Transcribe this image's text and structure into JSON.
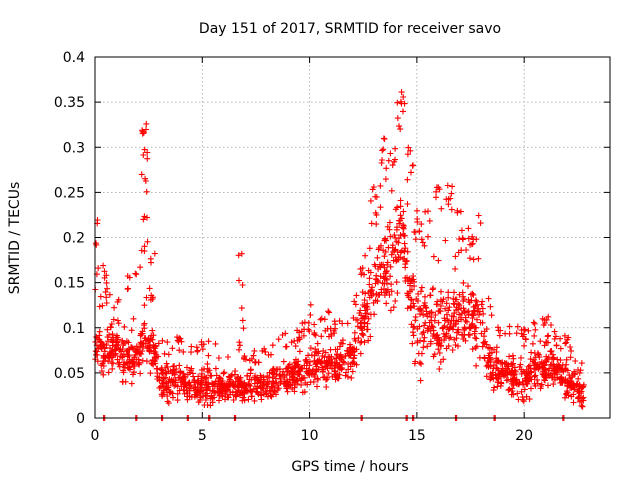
{
  "chart_data": {
    "type": "scatter",
    "title": "Day 151 of 2017, SRMTID for receiver savo",
    "xlabel": "GPS time / hours",
    "ylabel": "SRMTID / TECUs",
    "xlim": [
      0,
      24
    ],
    "ylim": [
      0,
      0.4
    ],
    "x_ticks": [
      0,
      5,
      10,
      15,
      20
    ],
    "y_ticks": [
      0,
      0.05,
      0.1,
      0.15,
      0.2,
      0.25,
      0.3,
      0.35,
      0.4
    ],
    "x_tick_labels": [
      "0",
      "5",
      "10",
      "15",
      "20"
    ],
    "y_tick_labels": [
      "0",
      "0.05",
      "0.1",
      "0.15",
      "0.2",
      "0.25",
      "0.3",
      "0.35",
      "0.4"
    ],
    "grid": true,
    "marker": "+",
    "series": [
      {
        "name": "SRMTID",
        "color": "#ff0000",
        "envelope_note": "approximate distribution of the ~2000 plotted samples: [hour, typical_low, typical_high, notable_peaks]",
        "envelope": [
          [
            0.0,
            0.05,
            0.12,
            [
              0.23,
              0.21,
              0.17
            ]
          ],
          [
            0.5,
            0.03,
            0.12,
            [
              0.17,
              0.15
            ]
          ],
          [
            1.0,
            0.04,
            0.12,
            []
          ],
          [
            1.5,
            0.03,
            0.11,
            [
              0.16
            ]
          ],
          [
            2.0,
            0.03,
            0.1,
            [
              0.17
            ]
          ],
          [
            2.3,
            0.06,
            0.12,
            [
              0.335,
              0.32,
              0.3,
              0.27,
              0.23,
              0.2
            ]
          ],
          [
            2.7,
            0.04,
            0.12,
            [
              0.19,
              0.15
            ]
          ],
          [
            3.0,
            0.01,
            0.07,
            []
          ],
          [
            4.0,
            0.01,
            0.07,
            [
              0.09
            ]
          ],
          [
            5.0,
            0.005,
            0.07,
            [
              0.09
            ]
          ],
          [
            6.0,
            0.01,
            0.06,
            []
          ],
          [
            6.8,
            0.01,
            0.06,
            [
              0.2,
              0.165,
              0.125,
              0.1
            ]
          ],
          [
            7.5,
            0.01,
            0.06,
            []
          ],
          [
            8.5,
            0.01,
            0.07,
            []
          ],
          [
            9.5,
            0.02,
            0.08,
            [
              0.1
            ]
          ],
          [
            10.0,
            0.02,
            0.09,
            [
              0.13
            ]
          ],
          [
            11.0,
            0.03,
            0.09,
            [
              0.13
            ]
          ],
          [
            12.0,
            0.03,
            0.1,
            []
          ],
          [
            12.5,
            0.07,
            0.15,
            [
              0.18
            ]
          ],
          [
            13.0,
            0.09,
            0.2,
            [
              0.26
            ]
          ],
          [
            13.5,
            0.1,
            0.23,
            [
              0.31,
              0.29
            ]
          ],
          [
            14.0,
            0.09,
            0.26,
            [
              0.35,
              0.3
            ]
          ],
          [
            14.3,
            0.15,
            0.27,
            [
              0.37,
              0.365,
              0.34
            ]
          ],
          [
            14.7,
            0.07,
            0.2,
            [
              0.3,
              0.28
            ]
          ],
          [
            15.0,
            0.03,
            0.17,
            [
              0.23,
              0.21
            ]
          ],
          [
            15.5,
            0.05,
            0.17,
            [
              0.23
            ]
          ],
          [
            16.0,
            0.04,
            0.16,
            [
              0.26,
              0.25
            ]
          ],
          [
            16.5,
            0.04,
            0.17,
            [
              0.26,
              0.25
            ]
          ],
          [
            17.0,
            0.06,
            0.17,
            [
              0.23,
              0.2
            ]
          ],
          [
            17.5,
            0.05,
            0.17,
            [
              0.2
            ]
          ],
          [
            18.0,
            0.05,
            0.16,
            [
              0.23
            ]
          ],
          [
            18.5,
            0.02,
            0.09,
            []
          ],
          [
            19.0,
            0.02,
            0.08,
            []
          ],
          [
            20.0,
            0.01,
            0.08,
            [
              0.1
            ]
          ],
          [
            20.5,
            0.02,
            0.08,
            [
              0.11
            ]
          ],
          [
            21.0,
            0.02,
            0.09,
            [
              0.12,
              0.1
            ]
          ],
          [
            21.5,
            0.03,
            0.08,
            [
              0.1
            ]
          ],
          [
            22.0,
            0.01,
            0.07,
            [
              0.09
            ]
          ],
          [
            22.5,
            0.01,
            0.05,
            [
              0.07
            ]
          ],
          [
            22.8,
            0.005,
            0.045,
            []
          ]
        ],
        "zero_samples": [
          0.4,
          1.9,
          3.1,
          4.3,
          5.3,
          6.5,
          12.4,
          14.5,
          14.8,
          16.8,
          18.6,
          21.8
        ]
      }
    ]
  }
}
